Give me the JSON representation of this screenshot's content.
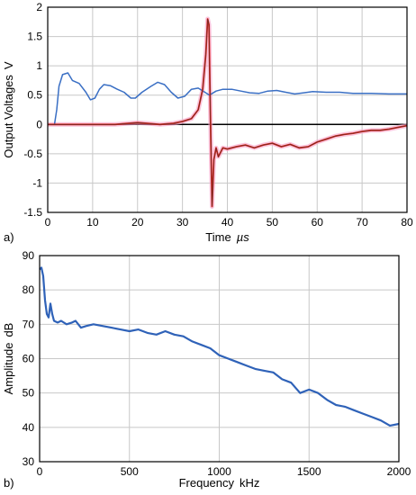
{
  "chart_data": [
    {
      "type": "line",
      "panel_label": "a)",
      "xlabel": "Time",
      "xunit": "µs",
      "ylabel": "Output Voltages",
      "yunit": "V",
      "xlim": [
        0,
        80
      ],
      "ylim": [
        -1.5,
        2
      ],
      "xticks": [
        "0",
        "10",
        "20",
        "30",
        "40",
        "50",
        "60",
        "70",
        "80"
      ],
      "yticks": [
        "-1.5",
        "-1",
        "-0.5",
        "0",
        "0.5",
        "1",
        "1.5",
        "2"
      ],
      "grid": true,
      "zero_line": true,
      "colors": {
        "blue": "#3a6fc4",
        "red": "#e0281e",
        "dark": "#3a2a2a",
        "pink": "#f5a0c8"
      },
      "series": [
        {
          "color": "#3a6fc4",
          "points": [
            [
              0,
              0
            ],
            [
              1.5,
              0
            ],
            [
              2,
              0.25
            ],
            [
              2.5,
              0.65
            ],
            [
              3.3,
              0.85
            ],
            [
              4.5,
              0.88
            ],
            [
              5.5,
              0.75
            ],
            [
              7,
              0.7
            ],
            [
              8.5,
              0.55
            ],
            [
              9.5,
              0.42
            ],
            [
              10.5,
              0.45
            ],
            [
              11.5,
              0.6
            ],
            [
              12.5,
              0.68
            ],
            [
              14,
              0.66
            ],
            [
              15.5,
              0.6
            ],
            [
              17,
              0.55
            ],
            [
              18.5,
              0.45
            ],
            [
              19.5,
              0.45
            ],
            [
              21,
              0.55
            ],
            [
              23,
              0.65
            ],
            [
              24.5,
              0.72
            ],
            [
              26,
              0.68
            ],
            [
              27.5,
              0.55
            ],
            [
              29,
              0.45
            ],
            [
              30.5,
              0.48
            ],
            [
              32,
              0.6
            ],
            [
              33.5,
              0.62
            ],
            [
              35,
              0.55
            ],
            [
              36,
              0.5
            ],
            [
              37.5,
              0.57
            ],
            [
              39,
              0.6
            ],
            [
              41,
              0.6
            ],
            [
              43,
              0.57
            ],
            [
              45,
              0.54
            ],
            [
              47,
              0.53
            ],
            [
              49,
              0.57
            ],
            [
              51,
              0.58
            ],
            [
              53,
              0.55
            ],
            [
              55,
              0.52
            ],
            [
              57,
              0.54
            ],
            [
              59,
              0.56
            ],
            [
              62,
              0.55
            ],
            [
              65,
              0.55
            ],
            [
              68,
              0.53
            ],
            [
              72,
              0.53
            ],
            [
              76,
              0.52
            ],
            [
              80,
              0.52
            ]
          ]
        },
        {
          "color": "#e0281e",
          "points": [
            [
              0,
              0
            ],
            [
              10,
              0
            ],
            [
              15,
              0
            ],
            [
              18,
              0.02
            ],
            [
              20,
              0.03
            ],
            [
              22,
              0.02
            ],
            [
              25,
              0
            ],
            [
              28,
              0.02
            ],
            [
              30,
              0.05
            ],
            [
              32,
              0.1
            ],
            [
              33.5,
              0.25
            ],
            [
              34.5,
              0.6
            ],
            [
              35.2,
              1.2
            ],
            [
              35.6,
              1.8
            ],
            [
              35.9,
              1.7
            ],
            [
              36.2,
              0.3
            ],
            [
              36.6,
              -1.4
            ],
            [
              37,
              -0.6
            ],
            [
              37.5,
              -0.4
            ],
            [
              38,
              -0.55
            ],
            [
              39,
              -0.4
            ],
            [
              40,
              -0.42
            ],
            [
              42,
              -0.38
            ],
            [
              44,
              -0.35
            ],
            [
              46,
              -0.4
            ],
            [
              48,
              -0.35
            ],
            [
              50,
              -0.32
            ],
            [
              52,
              -0.38
            ],
            [
              54,
              -0.34
            ],
            [
              56,
              -0.4
            ],
            [
              58,
              -0.38
            ],
            [
              60,
              -0.3
            ],
            [
              62,
              -0.25
            ],
            [
              64,
              -0.2
            ],
            [
              66,
              -0.17
            ],
            [
              68,
              -0.15
            ],
            [
              70,
              -0.12
            ],
            [
              72,
              -0.1
            ],
            [
              74,
              -0.1
            ],
            [
              76,
              -0.08
            ],
            [
              78,
              -0.05
            ],
            [
              80,
              -0.02
            ]
          ]
        }
      ]
    },
    {
      "type": "line",
      "panel_label": "b)",
      "xlabel": "Frequency",
      "xunit": "kHz",
      "ylabel": "Amplitude",
      "yunit": "dB",
      "xlim": [
        0,
        2000
      ],
      "ylim": [
        30,
        90
      ],
      "xticks": [
        "0",
        "500",
        "1000",
        "1500",
        "2000"
      ],
      "yticks": [
        "30",
        "40",
        "50",
        "60",
        "70",
        "80",
        "90"
      ],
      "grid": true,
      "series": [
        {
          "color": "#2f62b8",
          "points": [
            [
              0,
              86
            ],
            [
              10,
              86.5
            ],
            [
              20,
              84
            ],
            [
              30,
              77
            ],
            [
              40,
              73
            ],
            [
              50,
              72
            ],
            [
              60,
              76
            ],
            [
              70,
              73
            ],
            [
              80,
              71
            ],
            [
              100,
              70.5
            ],
            [
              120,
              71
            ],
            [
              150,
              70
            ],
            [
              180,
              70.5
            ],
            [
              200,
              71
            ],
            [
              230,
              69
            ],
            [
              260,
              69.5
            ],
            [
              300,
              70
            ],
            [
              350,
              69.5
            ],
            [
              400,
              69
            ],
            [
              450,
              68.5
            ],
            [
              500,
              68
            ],
            [
              550,
              68.5
            ],
            [
              600,
              67.5
            ],
            [
              650,
              67
            ],
            [
              700,
              68
            ],
            [
              750,
              67
            ],
            [
              800,
              66.5
            ],
            [
              850,
              65
            ],
            [
              900,
              64
            ],
            [
              950,
              63
            ],
            [
              1000,
              61
            ],
            [
              1050,
              60
            ],
            [
              1100,
              59
            ],
            [
              1150,
              58
            ],
            [
              1200,
              57
            ],
            [
              1250,
              56.5
            ],
            [
              1300,
              56
            ],
            [
              1350,
              54
            ],
            [
              1400,
              53
            ],
            [
              1450,
              50
            ],
            [
              1500,
              51
            ],
            [
              1550,
              50
            ],
            [
              1600,
              48
            ],
            [
              1650,
              46.5
            ],
            [
              1700,
              46
            ],
            [
              1750,
              45
            ],
            [
              1800,
              44
            ],
            [
              1850,
              43
            ],
            [
              1900,
              42
            ],
            [
              1950,
              40.5
            ],
            [
              2000,
              41
            ]
          ]
        }
      ]
    }
  ]
}
